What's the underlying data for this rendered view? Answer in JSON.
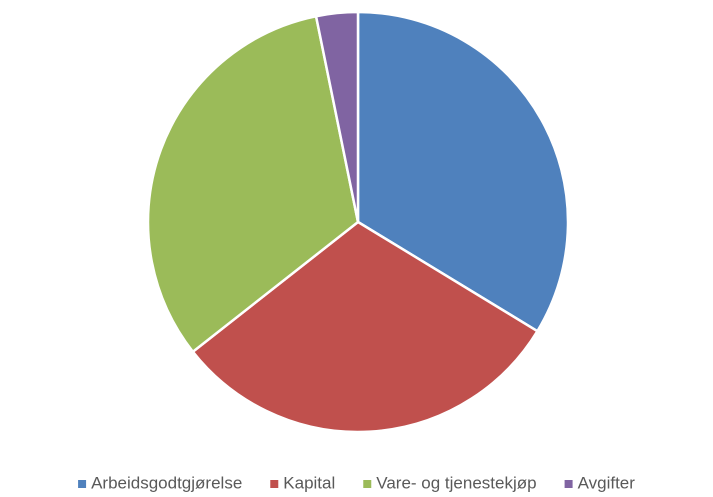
{
  "chart_data": {
    "type": "pie",
    "categories": [
      "Arbeidsgodtgjørelse",
      "Kapital",
      "Vare- og tjenestekjøp",
      "Avgifter"
    ],
    "values": [
      33.7,
      30.7,
      32.4,
      3.2
    ],
    "colors": [
      "#4f81bd",
      "#c0504d",
      "#9bbb59",
      "#8064a2"
    ],
    "legend": "bottom"
  }
}
